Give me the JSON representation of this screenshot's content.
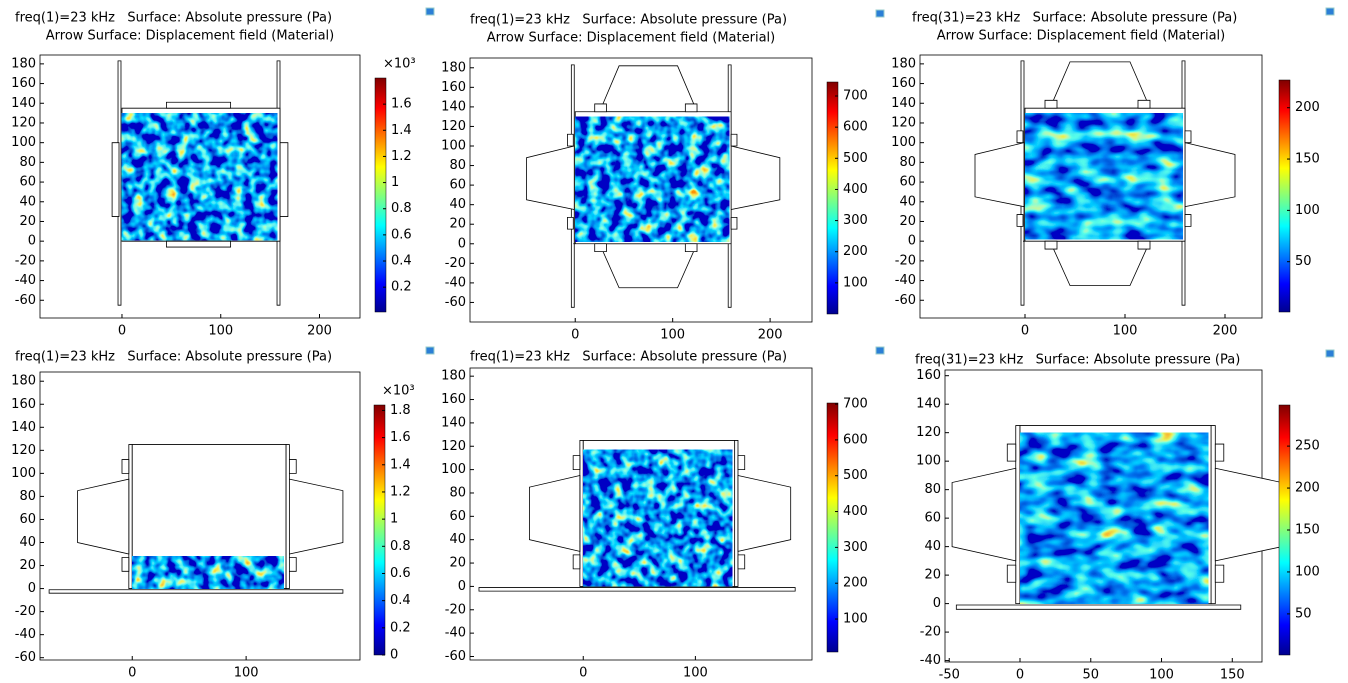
{
  "chart_data": [
    {
      "type": "heatmap",
      "title": "freq(1)=23 kHz   Surface: Absolute pressure (Pa)",
      "subtitle": "Arrow Surface: Displacement field (Material)",
      "xlim": [
        -83,
        241
      ],
      "ylim": [
        -78,
        189
      ],
      "xticks": [
        0,
        100,
        200
      ],
      "yticks": [
        180,
        160,
        140,
        120,
        100,
        80,
        60,
        40,
        20,
        0,
        -20,
        -40,
        -60
      ],
      "colorbar_label": "×10³",
      "colorbar_lim": [
        0.01,
        1.8
      ],
      "colorbar_ticks": [
        1.6,
        1.4,
        1.2,
        1,
        0.8,
        0.6,
        0.4,
        0.2
      ]
    },
    {
      "type": "heatmap",
      "title": "freq(1)=23 kHz   Surface: Absolute pressure (Pa)",
      "subtitle": "Arrow Surface: Displacement field (Material)",
      "xlim": [
        -108,
        243
      ],
      "ylim": [
        -80,
        190
      ],
      "xticks": [
        0,
        100,
        200
      ],
      "yticks": [
        180,
        160,
        140,
        120,
        100,
        80,
        60,
        40,
        20,
        0,
        -20,
        -40,
        -60
      ],
      "colorbar_lim": [
        0,
        745
      ],
      "colorbar_ticks": [
        700,
        600,
        500,
        400,
        300,
        200,
        100
      ]
    },
    {
      "type": "heatmap",
      "title": "freq(31)=23 kHz   Surface: Absolute pressure (Pa)",
      "subtitle": "Arrow Surface: Displacement field (Material)",
      "xlim": [
        -105,
        237
      ],
      "ylim": [
        -78,
        189
      ],
      "xticks": [
        0,
        100,
        200
      ],
      "yticks": [
        180,
        160,
        140,
        120,
        100,
        80,
        60,
        40,
        20,
        0,
        -20,
        -40,
        -60
      ],
      "colorbar_lim": [
        1,
        227
      ],
      "colorbar_ticks": [
        200,
        150,
        100,
        50
      ]
    },
    {
      "type": "heatmap",
      "title": "freq(1)=23 kHz   Surface: Absolute pressure (Pa)",
      "xlim": [
        -81,
        200
      ],
      "ylim": [
        -62,
        188
      ],
      "xticks": [
        0,
        100
      ],
      "yticks": [
        180,
        160,
        140,
        120,
        100,
        80,
        60,
        40,
        20,
        0,
        -20,
        -40,
        -60
      ],
      "colorbar_label": "×10³",
      "colorbar_lim": [
        0,
        1.84
      ],
      "colorbar_ticks": [
        1.8,
        1.6,
        1.4,
        1.2,
        1,
        0.8,
        0.6,
        0.4,
        0.2,
        0
      ]
    },
    {
      "type": "heatmap",
      "title": "freq(1)=23 kHz   Surface: Absolute pressure (Pa)",
      "xlim": [
        -101,
        204
      ],
      "ylim": [
        -63,
        187
      ],
      "xticks": [
        0,
        100
      ],
      "yticks": [
        180,
        160,
        140,
        120,
        100,
        80,
        60,
        40,
        20,
        0,
        -20,
        -40,
        -60
      ],
      "colorbar_lim": [
        8,
        703
      ],
      "colorbar_ticks": [
        700,
        600,
        500,
        400,
        300,
        200,
        100
      ]
    },
    {
      "type": "heatmap",
      "title": "freq(31)=23 kHz   Surface: Absolute pressure (Pa)",
      "xlim": [
        -53,
        171
      ],
      "ylim": [
        -41,
        164
      ],
      "xticks": [
        -50,
        0,
        50,
        100,
        150
      ],
      "yticks": [
        160,
        140,
        120,
        100,
        80,
        60,
        40,
        20,
        0,
        -20,
        -40
      ],
      "colorbar_lim": [
        1,
        299
      ],
      "colorbar_ticks": [
        250,
        200,
        150,
        100,
        50
      ]
    }
  ]
}
